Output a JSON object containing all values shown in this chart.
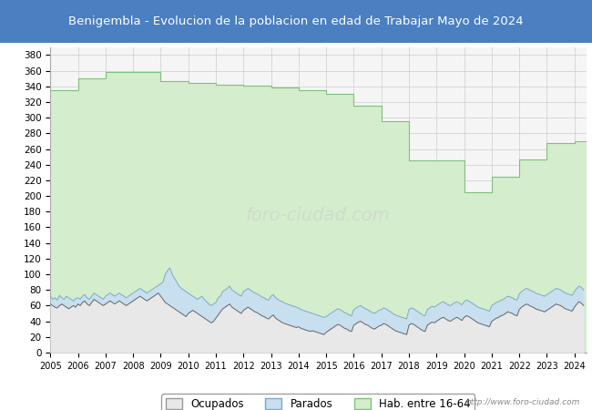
{
  "title": "Benigembla - Evolucion de la poblacion en edad de Trabajar Mayo de 2024",
  "title_bg": "#4a7fc1",
  "title_color": "white",
  "ylim": [
    0,
    390
  ],
  "yticks": [
    0,
    20,
    40,
    60,
    80,
    100,
    120,
    140,
    160,
    180,
    200,
    220,
    240,
    260,
    280,
    300,
    320,
    340,
    360,
    380
  ],
  "years": [
    2005,
    2006,
    2007,
    2008,
    2009,
    2010,
    2011,
    2012,
    2013,
    2014,
    2015,
    2016,
    2017,
    2018,
    2019,
    2020,
    2021,
    2022,
    2023,
    2024
  ],
  "hab_16_64_step": [
    335,
    350,
    358,
    358,
    347,
    344,
    342,
    341,
    338,
    335,
    330,
    315,
    295,
    245,
    245,
    205,
    225,
    247,
    268,
    270
  ],
  "parados_monthly_x": [
    2005.0,
    2005.083,
    2005.167,
    2005.25,
    2005.333,
    2005.417,
    2005.5,
    2005.583,
    2005.667,
    2005.75,
    2005.833,
    2005.917,
    2006.0,
    2006.083,
    2006.167,
    2006.25,
    2006.333,
    2006.417,
    2006.5,
    2006.583,
    2006.667,
    2006.75,
    2006.833,
    2006.917,
    2007.0,
    2007.083,
    2007.167,
    2007.25,
    2007.333,
    2007.417,
    2007.5,
    2007.583,
    2007.667,
    2007.75,
    2007.833,
    2007.917,
    2008.0,
    2008.083,
    2008.167,
    2008.25,
    2008.333,
    2008.417,
    2008.5,
    2008.583,
    2008.667,
    2008.75,
    2008.833,
    2008.917,
    2009.0,
    2009.083,
    2009.167,
    2009.25,
    2009.333,
    2009.417,
    2009.5,
    2009.583,
    2009.667,
    2009.75,
    2009.833,
    2009.917,
    2010.0,
    2010.083,
    2010.167,
    2010.25,
    2010.333,
    2010.417,
    2010.5,
    2010.583,
    2010.667,
    2010.75,
    2010.833,
    2010.917,
    2011.0,
    2011.083,
    2011.167,
    2011.25,
    2011.333,
    2011.417,
    2011.5,
    2011.583,
    2011.667,
    2011.75,
    2011.833,
    2011.917,
    2012.0,
    2012.083,
    2012.167,
    2012.25,
    2012.333,
    2012.417,
    2012.5,
    2012.583,
    2012.667,
    2012.75,
    2012.833,
    2012.917,
    2013.0,
    2013.083,
    2013.167,
    2013.25,
    2013.333,
    2013.417,
    2013.5,
    2013.583,
    2013.667,
    2013.75,
    2013.833,
    2013.917,
    2014.0,
    2014.083,
    2014.167,
    2014.25,
    2014.333,
    2014.417,
    2014.5,
    2014.583,
    2014.667,
    2014.75,
    2014.833,
    2014.917,
    2015.0,
    2015.083,
    2015.167,
    2015.25,
    2015.333,
    2015.417,
    2015.5,
    2015.583,
    2015.667,
    2015.75,
    2015.833,
    2015.917,
    2016.0,
    2016.083,
    2016.167,
    2016.25,
    2016.333,
    2016.417,
    2016.5,
    2016.583,
    2016.667,
    2016.75,
    2016.833,
    2016.917,
    2017.0,
    2017.083,
    2017.167,
    2017.25,
    2017.333,
    2017.417,
    2017.5,
    2017.583,
    2017.667,
    2017.75,
    2017.833,
    2017.917,
    2018.0,
    2018.083,
    2018.167,
    2018.25,
    2018.333,
    2018.417,
    2018.5,
    2018.583,
    2018.667,
    2018.75,
    2018.833,
    2018.917,
    2019.0,
    2019.083,
    2019.167,
    2019.25,
    2019.333,
    2019.417,
    2019.5,
    2019.583,
    2019.667,
    2019.75,
    2019.833,
    2019.917,
    2020.0,
    2020.083,
    2020.167,
    2020.25,
    2020.333,
    2020.417,
    2020.5,
    2020.583,
    2020.667,
    2020.75,
    2020.833,
    2020.917,
    2021.0,
    2021.083,
    2021.167,
    2021.25,
    2021.333,
    2021.417,
    2021.5,
    2021.583,
    2021.667,
    2021.75,
    2021.833,
    2021.917,
    2022.0,
    2022.083,
    2022.167,
    2022.25,
    2022.333,
    2022.417,
    2022.5,
    2022.583,
    2022.667,
    2022.75,
    2022.833,
    2022.917,
    2023.0,
    2023.083,
    2023.167,
    2023.25,
    2023.333,
    2023.417,
    2023.5,
    2023.583,
    2023.667,
    2023.75,
    2023.833,
    2023.917,
    2024.0,
    2024.083,
    2024.167,
    2024.25,
    2024.333
  ],
  "parados_monthly_y": [
    72,
    68,
    70,
    67,
    73,
    70,
    68,
    72,
    70,
    68,
    66,
    69,
    70,
    68,
    72,
    74,
    70,
    68,
    72,
    76,
    74,
    72,
    70,
    68,
    72,
    74,
    76,
    74,
    72,
    74,
    76,
    74,
    72,
    70,
    72,
    74,
    76,
    78,
    80,
    82,
    80,
    78,
    76,
    78,
    80,
    82,
    84,
    86,
    88,
    90,
    100,
    105,
    108,
    100,
    95,
    90,
    85,
    82,
    80,
    78,
    76,
    74,
    72,
    70,
    68,
    70,
    72,
    68,
    65,
    62,
    60,
    62,
    64,
    70,
    72,
    78,
    80,
    82,
    85,
    80,
    78,
    76,
    74,
    72,
    78,
    80,
    82,
    80,
    78,
    76,
    75,
    73,
    71,
    70,
    68,
    67,
    72,
    74,
    70,
    68,
    66,
    65,
    63,
    62,
    61,
    60,
    59,
    58,
    57,
    55,
    54,
    53,
    52,
    51,
    50,
    49,
    48,
    47,
    46,
    45,
    46,
    48,
    50,
    52,
    54,
    56,
    55,
    53,
    51,
    50,
    48,
    47,
    55,
    57,
    59,
    60,
    58,
    56,
    55,
    53,
    51,
    50,
    52,
    54,
    55,
    57,
    56,
    54,
    52,
    50,
    48,
    47,
    46,
    45,
    44,
    43,
    55,
    57,
    56,
    54,
    52,
    50,
    48,
    47,
    55,
    57,
    59,
    58,
    60,
    62,
    64,
    65,
    63,
    61,
    60,
    62,
    64,
    65,
    63,
    61,
    65,
    67,
    66,
    64,
    62,
    60,
    58,
    57,
    56,
    55,
    54,
    53,
    60,
    62,
    64,
    65,
    67,
    68,
    70,
    72,
    71,
    70,
    68,
    67,
    75,
    78,
    80,
    82,
    81,
    79,
    78,
    76,
    75,
    74,
    73,
    72,
    74,
    76,
    78,
    80,
    82,
    81,
    80,
    78,
    76,
    75,
    74,
    73,
    78,
    82,
    85,
    83,
    80
  ],
  "ocupados_monthly_y": [
    62,
    60,
    58,
    57,
    60,
    62,
    60,
    58,
    56,
    58,
    60,
    58,
    62,
    60,
    64,
    66,
    62,
    60,
    64,
    68,
    66,
    64,
    62,
    60,
    62,
    64,
    66,
    64,
    62,
    64,
    66,
    64,
    62,
    60,
    62,
    64,
    66,
    68,
    70,
    72,
    70,
    68,
    66,
    68,
    70,
    72,
    74,
    76,
    72,
    68,
    64,
    62,
    60,
    58,
    56,
    54,
    52,
    50,
    48,
    46,
    50,
    52,
    54,
    52,
    50,
    48,
    46,
    44,
    42,
    40,
    38,
    40,
    44,
    48,
    52,
    56,
    58,
    60,
    62,
    58,
    56,
    54,
    52,
    50,
    54,
    56,
    58,
    56,
    54,
    52,
    51,
    49,
    47,
    46,
    44,
    43,
    46,
    48,
    44,
    42,
    40,
    38,
    37,
    36,
    35,
    34,
    33,
    32,
    33,
    31,
    30,
    29,
    28,
    27,
    28,
    27,
    26,
    25,
    24,
    23,
    26,
    28,
    30,
    32,
    34,
    36,
    35,
    33,
    31,
    30,
    28,
    27,
    35,
    37,
    39,
    40,
    38,
    36,
    35,
    33,
    31,
    30,
    32,
    34,
    35,
    37,
    36,
    34,
    32,
    30,
    28,
    27,
    26,
    25,
    24,
    23,
    35,
    37,
    36,
    34,
    32,
    30,
    28,
    27,
    35,
    37,
    39,
    38,
    40,
    42,
    44,
    45,
    43,
    41,
    40,
    42,
    44,
    45,
    43,
    41,
    45,
    47,
    46,
    44,
    42,
    40,
    38,
    37,
    36,
    35,
    34,
    33,
    40,
    42,
    44,
    45,
    47,
    48,
    50,
    52,
    51,
    50,
    48,
    47,
    55,
    58,
    60,
    62,
    61,
    59,
    58,
    56,
    55,
    54,
    53,
    52,
    54,
    56,
    58,
    60,
    62,
    61,
    60,
    58,
    56,
    55,
    54,
    53,
    58,
    62,
    65,
    63,
    60
  ],
  "hab_color": "#d4edcc",
  "hab_edge": "#7fbf7f",
  "parados_color": "#c8dff0",
  "parados_edge": "#7aaac8",
  "ocupados_color": "#e8e8e8",
  "ocupados_edge": "#999999",
  "line_hab": "#7fbf7f",
  "line_parados": "#7aaac8",
  "line_ocupados": "#666666",
  "watermark": "foro-ciudad.com",
  "legend_labels": [
    "Ocupados",
    "Parados",
    "Hab. entre 16-64"
  ]
}
